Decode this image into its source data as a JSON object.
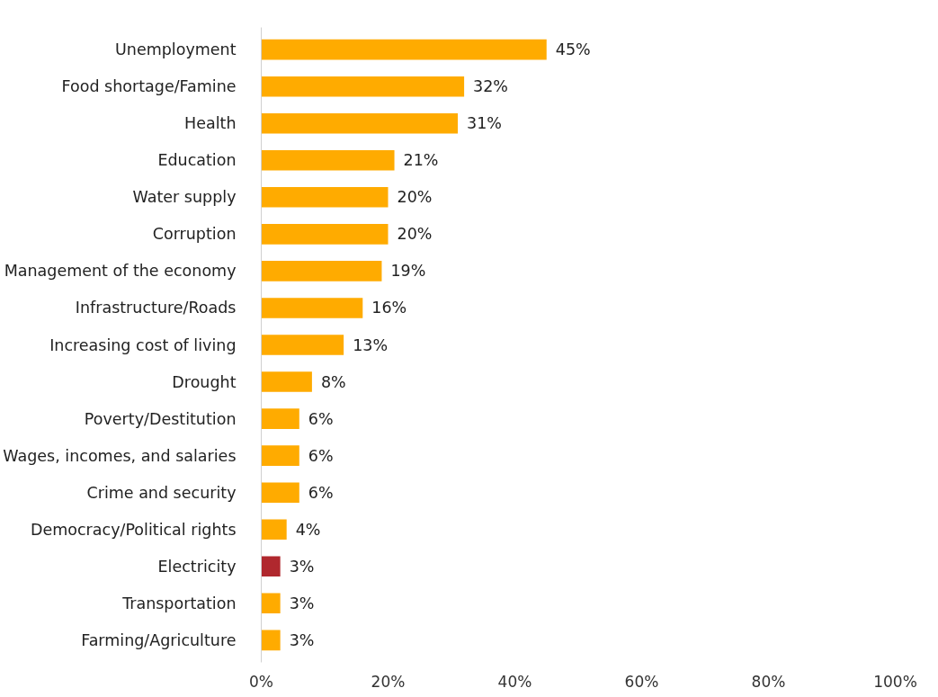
{
  "chart_data": {
    "type": "bar",
    "orientation": "horizontal",
    "categories": [
      "Unemployment",
      "Food shortage/Famine",
      "Health",
      "Education",
      "Water supply",
      "Corruption",
      "Management of the economy",
      "Infrastructure/Roads",
      "Increasing cost of living",
      "Drought",
      "Poverty/Destitution",
      "Wages, incomes, and salaries",
      "Crime and security",
      "Democracy/Political rights",
      "Electricity",
      "Transportation",
      "Farming/Agriculture"
    ],
    "values": [
      45,
      32,
      31,
      21,
      20,
      20,
      19,
      16,
      13,
      8,
      6,
      6,
      6,
      4,
      3,
      3,
      3
    ],
    "value_labels": [
      "45%",
      "32%",
      "31%",
      "21%",
      "20%",
      "20%",
      "19%",
      "16%",
      "13%",
      "8%",
      "6%",
      "6%",
      "6%",
      "4%",
      "3%",
      "3%",
      "3%"
    ],
    "colors": [
      "#ffab00",
      "#ffab00",
      "#ffab00",
      "#ffab00",
      "#ffab00",
      "#ffab00",
      "#ffab00",
      "#ffab00",
      "#ffab00",
      "#ffab00",
      "#ffab00",
      "#ffab00",
      "#ffab00",
      "#ffab00",
      "#b0282e",
      "#ffab00",
      "#ffab00"
    ],
    "xlim": [
      0,
      100
    ],
    "xticks": [
      {
        "value": 0,
        "label": "0%"
      },
      {
        "value": 20,
        "label": "20%"
      },
      {
        "value": 40,
        "label": "40%"
      },
      {
        "value": 60,
        "label": "60%"
      },
      {
        "value": 80,
        "label": "80%"
      },
      {
        "value": 100,
        "label": "100%"
      }
    ],
    "grid": false
  }
}
